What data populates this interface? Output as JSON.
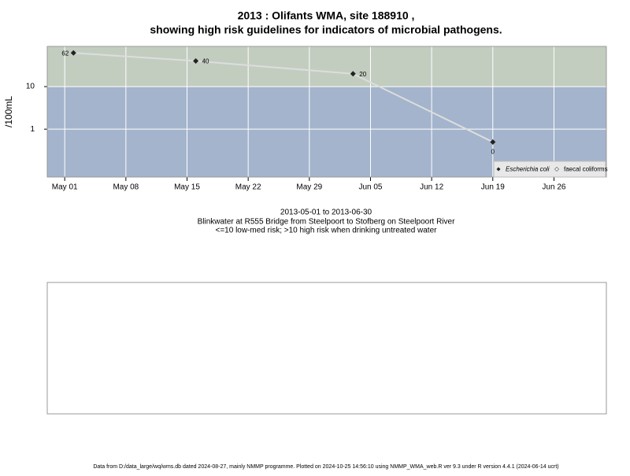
{
  "chart_data": {
    "type": "line",
    "title": "2013 : Olifants WMA, site 188910 ,",
    "title_line2": "showing high risk guidelines for indicators of microbial pathogens.",
    "subtitle_lines": [
      "2013-05-01 to 2013-06-30",
      "Blinkwater at R555 Bridge from Steelpoort to Stofberg on Steelpoort River",
      "<=10 low-med risk; >10 high risk when drinking untreated water"
    ],
    "y_label": "/100mL",
    "x": [
      "2013-05-02",
      "2013-05-16",
      "2013-06-03",
      "2013-06-19"
    ],
    "series": [
      {
        "name": "Escherichia coli",
        "color": "#222222",
        "line_color": "#dddddd",
        "values": [
          62,
          40,
          20,
          0.5
        ],
        "value_labels": [
          "62",
          "40",
          "20",
          "0"
        ]
      },
      {
        "name": "faecal coliforms",
        "color": "#ffffff",
        "values": [
          null,
          null,
          null,
          null
        ]
      }
    ],
    "threshold": 10,
    "high_color": "#c2cdc0",
    "low_color": "#a4b4cc",
    "log_scale": true,
    "ylim": [
      0.075,
      88
    ],
    "yticks": [
      1,
      10
    ],
    "xlim": [
      "2013-04-29",
      "2013-07-02"
    ],
    "xticks": [
      {
        "value": "2013-05-01",
        "label": "May 01"
      },
      {
        "value": "2013-05-08",
        "label": "May 08"
      },
      {
        "value": "2013-05-15",
        "label": "May 15"
      },
      {
        "value": "2013-05-22",
        "label": "May 22"
      },
      {
        "value": "2013-05-29",
        "label": "May 29"
      },
      {
        "value": "2013-06-05",
        "label": "Jun 05"
      },
      {
        "value": "2013-06-12",
        "label": "Jun 12"
      },
      {
        "value": "2013-06-19",
        "label": "Jun 19"
      },
      {
        "value": "2013-06-26",
        "label": "Jun 26"
      }
    ],
    "grid": true,
    "legend_position": "bottom-right",
    "footer": "Data from D:/data_large/wq/wms.db dated 2024-08-27, mainly NMMP programme. Plotted on 2024-10-25 14:56:10 using NMMP_WMA_web.R ver 9.3 under R version 4.4.1 (2024-06-14 ucrt)"
  }
}
